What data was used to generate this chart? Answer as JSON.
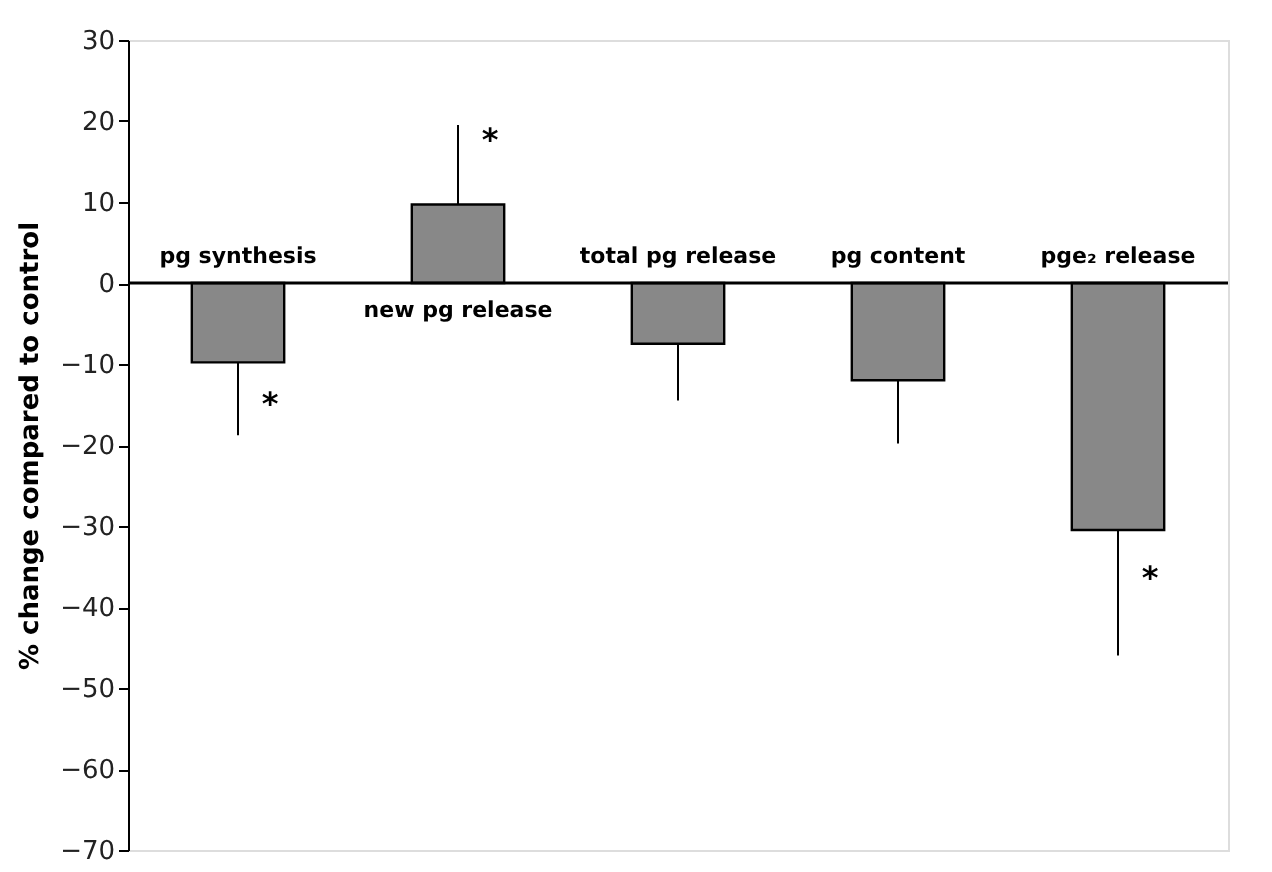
{
  "chart_data": {
    "type": "bar",
    "ylabel": "% change compared to control",
    "categories": [
      "pg synthesis",
      "new pg release",
      "total pg release",
      "pg content",
      "pge₂ release"
    ],
    "values": [
      -9.8,
      9.7,
      -7.5,
      -12,
      -30.5
    ],
    "errors": [
      [
        -18.8,
        -9.8
      ],
      [
        9.7,
        19.5
      ],
      [
        -14.5,
        -7.5
      ],
      [
        -19.8,
        -12
      ],
      [
        -46,
        -30.5
      ]
    ],
    "color": "#888888",
    "ylim": [
      -70,
      30
    ],
    "yticks": [
      -70,
      -60,
      -50,
      -40,
      -30,
      -20,
      -10,
      0,
      10,
      20,
      30
    ],
    "grid": false,
    "annotations": [
      {
        "text": "*",
        "x": "pg synthesis",
        "y": -15
      },
      {
        "text": "*",
        "x": "new pg release",
        "y": 17.5
      },
      {
        "text": "*",
        "x": "pge₂ release",
        "y": -36.5
      }
    ]
  }
}
